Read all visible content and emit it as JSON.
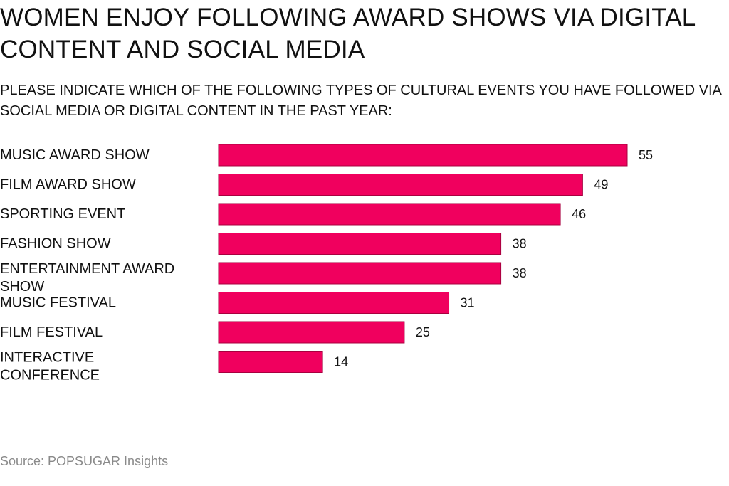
{
  "header": {
    "title": "WOMEN ENJOY FOLLOWING AWARD SHOWS VIA DIGITAL CONTENT AND SOCIAL MEDIA",
    "subtitle": "PLEASE INDICATE WHICH OF THE FOLLOWING TYPES OF CULTURAL EVENTS YOU HAVE FOLLOWED VIA SOCIAL MEDIA OR DIGITAL CONTENT IN THE PAST YEAR:"
  },
  "footer": {
    "source": "Source: POPSUGAR Insights"
  },
  "colors": {
    "bar_fill": "#F0005E",
    "bar_stroke": "#A8003F",
    "label_text": "#111111",
    "source_text": "#8A8A8A"
  },
  "chart_data": {
    "type": "bar",
    "orientation": "horizontal",
    "categories": [
      "MUSIC AWARD SHOW",
      "FILM AWARD SHOW",
      "SPORTING EVENT",
      "FASHION SHOW",
      "ENTERTAINMENT AWARD SHOW",
      "MUSIC FESTIVAL",
      "FILM FESTIVAL",
      "INTERACTIVE CONFERENCE"
    ],
    "values": [
      55,
      49,
      46,
      38,
      38,
      31,
      25,
      14
    ],
    "data_labels": true,
    "xlim": [
      0,
      55
    ],
    "grid": false,
    "legend": "none"
  }
}
